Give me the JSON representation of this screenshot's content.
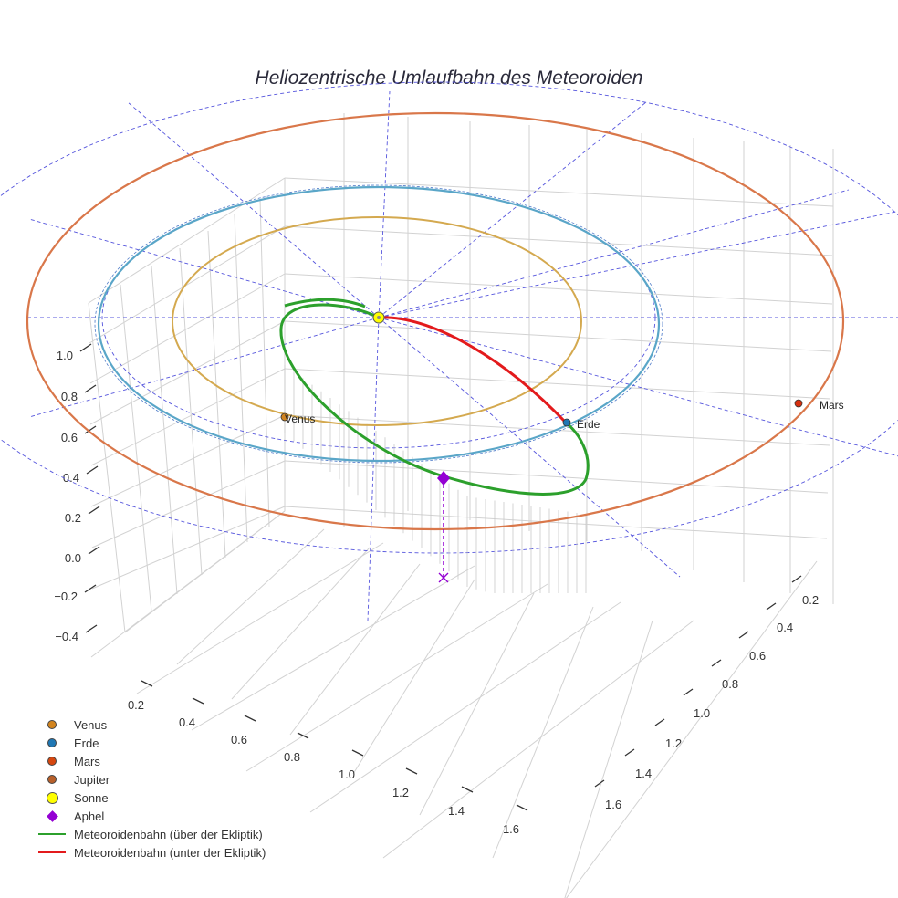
{
  "chart_data": {
    "type": "scatter3d",
    "title": "Heliozentrische Umlaufbahn des Meteoroiden",
    "axes": {
      "x_ticks": [
        0.2,
        0.4,
        0.6,
        0.8,
        1.0,
        1.2,
        1.4,
        1.6
      ],
      "y_ticks": [
        0.2,
        0.4,
        0.6,
        0.8,
        1.0,
        1.2,
        1.4,
        1.6
      ],
      "z_ticks": [
        -0.4,
        -0.2,
        0.0,
        0.2,
        0.4,
        0.6,
        0.8,
        1.0
      ],
      "grid": true
    },
    "planet_labels": [
      {
        "name": "Venus",
        "color": "#d2841e"
      },
      {
        "name": "Erde",
        "color": "#1f77b4"
      },
      {
        "name": "Mars",
        "color": "#d62f0f"
      }
    ],
    "orbits": [
      {
        "name": "Venus",
        "radius_au": 0.72,
        "color": "#d4a94f"
      },
      {
        "name": "Erde",
        "radius_au": 1.0,
        "color": "#5aa6c8"
      },
      {
        "name": "Mars",
        "radius_au": 1.52,
        "color": "#d9774a"
      }
    ],
    "legend": [
      {
        "label": "Venus",
        "symbol": "dot",
        "color": "#d2841e"
      },
      {
        "label": "Erde",
        "symbol": "dot",
        "color": "#1f77b4"
      },
      {
        "label": "Mars",
        "symbol": "dot",
        "color": "#d6470f"
      },
      {
        "label": "Jupiter",
        "symbol": "dot",
        "color": "#b8602a"
      },
      {
        "label": "Sonne",
        "symbol": "sun",
        "color": "#ffff00"
      },
      {
        "label": "Aphel",
        "symbol": "diamond",
        "color": "#9400d3"
      },
      {
        "label": "Meteoroidenbahn (über der Ekliptik)",
        "symbol": "line",
        "color": "#2ca02c"
      },
      {
        "label": "Meteoroidenbahn (unter der Ekliptik)",
        "symbol": "line",
        "color": "#e31a1c"
      }
    ],
    "colors": {
      "grid": "#d2d2d2",
      "ecliptic_guides": "#5555dd",
      "aphel": "#9400d3",
      "sun": "#ffff00"
    }
  }
}
